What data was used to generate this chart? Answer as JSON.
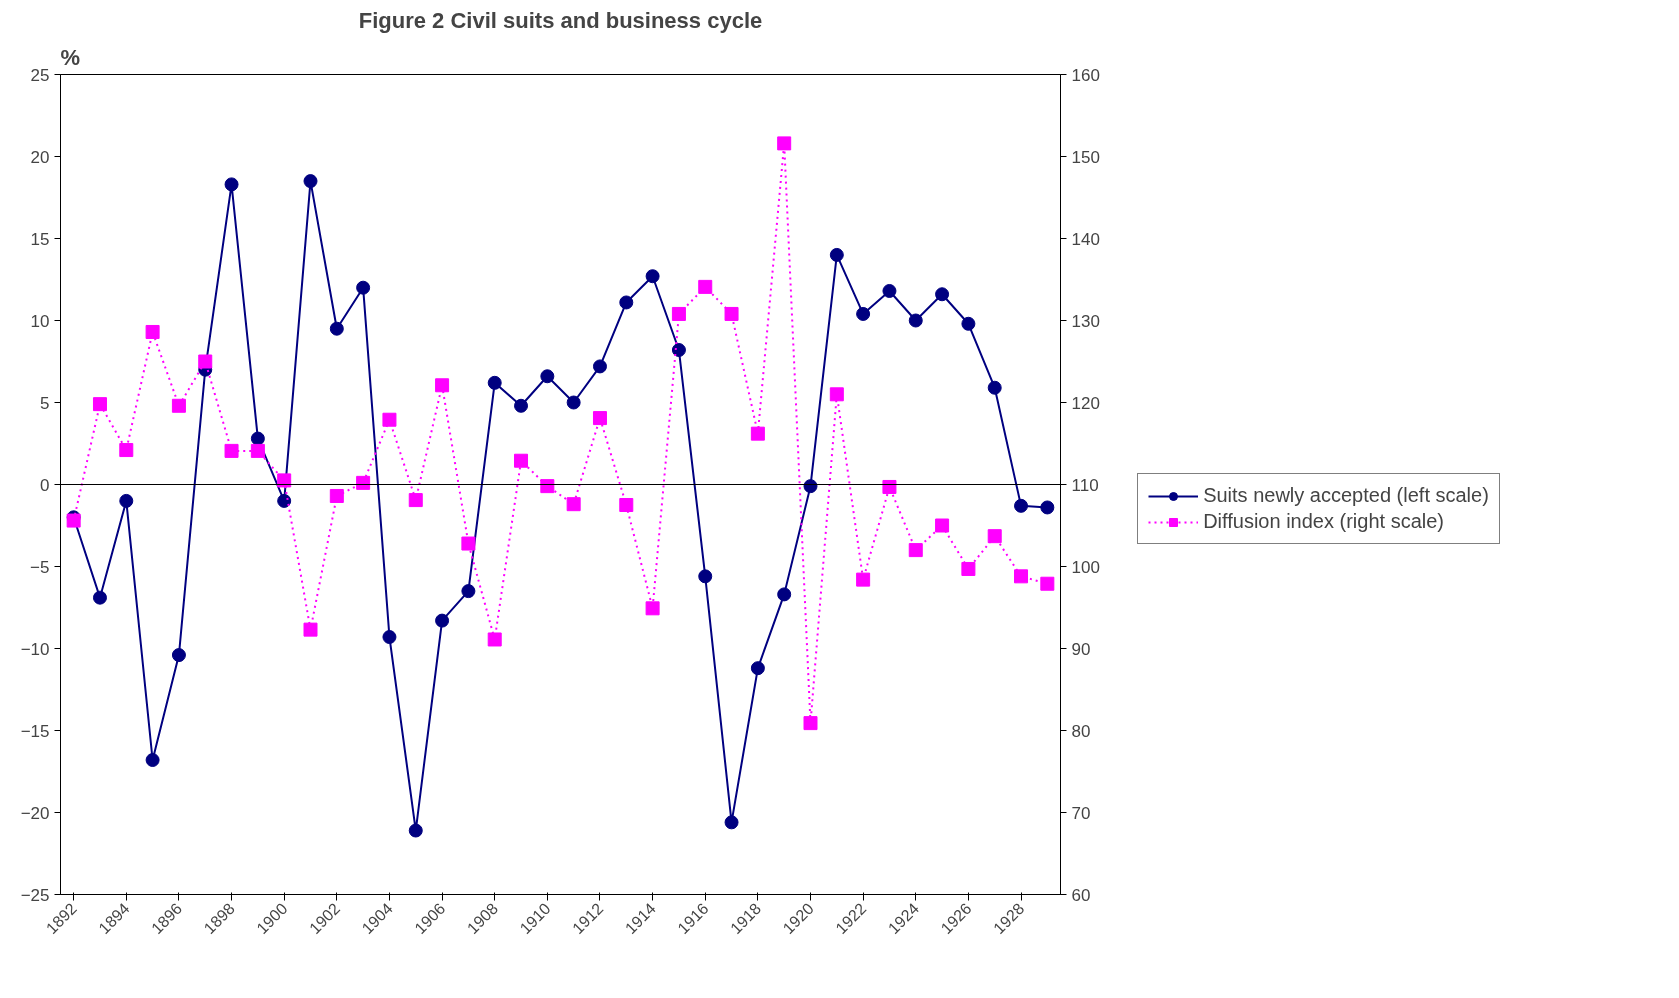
{
  "chart_data": {
    "type": "line",
    "title": "Figure 2 Civil suits and business cycle",
    "ylabel": "%",
    "categories": [
      "1892",
      null,
      "1894",
      null,
      "1896",
      null,
      "1898",
      null,
      "1900",
      null,
      "1902",
      null,
      "1904",
      null,
      "1906",
      null,
      "1908",
      null,
      "1910",
      null,
      "1912",
      null,
      "1914",
      null,
      "1916",
      null,
      "1918",
      null,
      "1920",
      null,
      "1922",
      null,
      "1924",
      null,
      "1926",
      null,
      "1928",
      null
    ],
    "series": [
      {
        "name": "Suits newly accepted (left scale)",
        "color": "#000080",
        "marker": "circle",
        "line_style": "solid",
        "values": [
          -2.0,
          -6.9,
          -1.0,
          -16.8,
          -10.4,
          7.0,
          18.3,
          2.8,
          -1.0,
          18.5,
          9.5,
          12.0,
          -9.3,
          -21.1,
          -8.3,
          -6.5,
          6.2,
          4.8,
          6.6,
          5.0,
          7.2,
          11.1,
          12.7,
          8.2,
          -5.6,
          -20.6,
          -11.2,
          -6.7,
          -0.1,
          14.0,
          10.4,
          11.8,
          10.0,
          11.6,
          9.8,
          5.9,
          -1.3,
          -1.4
        ]
      },
      {
        "name": "Diffusion index (right scale)",
        "color": "#ff00ff",
        "marker": "square",
        "line_style": "dotted",
        "axis": "y2",
        "values": [
          105.6,
          119.8,
          114.2,
          128.6,
          119.6,
          125.0,
          114.1,
          114.1,
          110.5,
          92.3,
          108.6,
          110.2,
          117.9,
          108.1,
          122.1,
          102.8,
          91.1,
          112.9,
          109.8,
          107.6,
          118.1,
          107.5,
          94.9,
          130.8,
          134.1,
          130.8,
          116.2,
          151.6,
          80.9,
          121.0,
          98.4,
          109.7,
          102.0,
          105.0,
          99.7,
          103.7,
          98.8,
          97.9
        ]
      }
    ],
    "ylim": [
      -25,
      25
    ],
    "yticks": [
      -25,
      -20,
      -15,
      -10,
      -5,
      0,
      5,
      10,
      15,
      20,
      25
    ],
    "y2lim": [
      60,
      160
    ],
    "y2ticks": [
      60,
      70,
      80,
      90,
      100,
      110,
      120,
      130,
      140,
      150,
      160
    ],
    "ref_lines": [
      {
        "axis": "y",
        "value": 0,
        "color": "#000000"
      }
    ],
    "grid": false,
    "legend": "right"
  }
}
